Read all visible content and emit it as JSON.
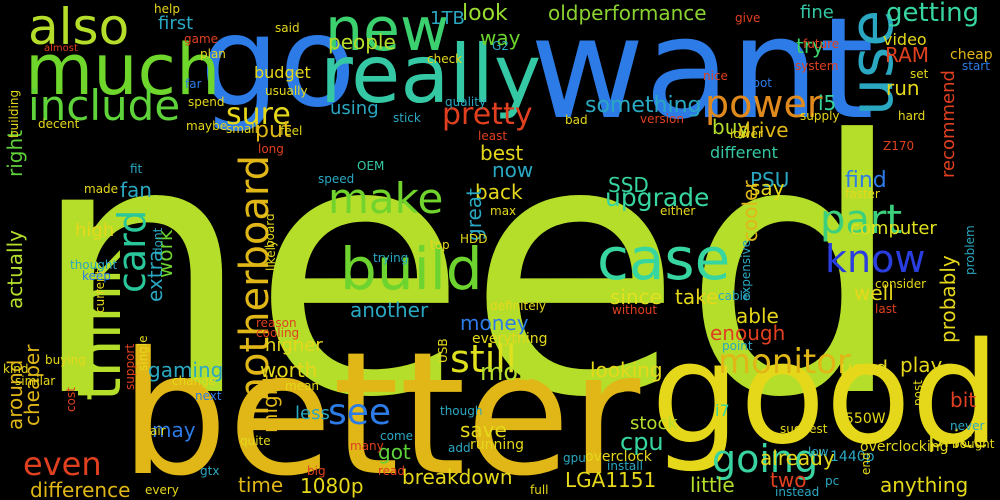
{
  "words": [
    {
      "text": "need",
      "color": "#b5de2b",
      "rot": 0
    },
    {
      "text": "better",
      "color": "#e0b716",
      "rot": 0
    },
    {
      "text": "want",
      "color": "#2d7be6",
      "rot": 0
    },
    {
      "text": "good",
      "color": "#e5d81a",
      "rot": 0
    },
    {
      "text": "go",
      "color": "#2d7be6",
      "rot": 0
    },
    {
      "text": "really",
      "color": "#35c8a4",
      "rot": 0
    },
    {
      "text": "much",
      "color": "#6fd62c",
      "rot": 0
    },
    {
      "text": "new",
      "color": "#3bd16e",
      "rot": 0
    },
    {
      "text": "use",
      "color": "#2aa8c2",
      "rot": 270
    },
    {
      "text": "case",
      "color": "#37d6a0",
      "rot": 0
    },
    {
      "text": "build",
      "color": "#6dd32e",
      "rot": 0
    },
    {
      "text": "think",
      "color": "#b5de2b",
      "rot": 270
    },
    {
      "text": "also",
      "color": "#b5de2b",
      "rot": 0
    },
    {
      "text": "include",
      "color": "#5ed33a",
      "rot": 0
    },
    {
      "text": "make",
      "color": "#70d42c",
      "rot": 0
    },
    {
      "text": "part",
      "color": "#3dd07c",
      "rot": 0
    },
    {
      "text": "know",
      "color": "#2a3ee0",
      "rot": 0
    },
    {
      "text": "power",
      "color": "#e08a1d",
      "rot": 0
    },
    {
      "text": "card",
      "color": "#2ac79b",
      "rot": 270
    },
    {
      "text": "motherboard",
      "color": "#e0b716",
      "rot": 270
    },
    {
      "text": "still",
      "color": "#dfe01e",
      "rot": 0
    },
    {
      "text": "going",
      "color": "#38d3a0",
      "rot": 0
    },
    {
      "text": "see",
      "color": "#2d7be6",
      "rot": 0
    },
    {
      "text": "monitor",
      "color": "#e0b716",
      "rot": 0
    },
    {
      "text": "even",
      "color": "#e0401f",
      "rot": 0
    },
    {
      "text": "sure",
      "color": "#e5d81a",
      "rot": 0
    },
    {
      "text": "pretty",
      "color": "#e0401f",
      "rot": 0
    },
    {
      "text": "getting",
      "color": "#37d6a0",
      "rot": 0
    },
    {
      "text": "people",
      "color": "#b5de2b",
      "rot": 0
    },
    {
      "text": "look",
      "color": "#9adb30",
      "rot": 0
    },
    {
      "text": "way",
      "color": "#6dd32e",
      "rot": 0
    },
    {
      "text": "oldperformance",
      "color": "#8bd32f",
      "rot": 0
    },
    {
      "text": "first",
      "color": "#2aa8c2",
      "rot": 0
    },
    {
      "text": "fine",
      "color": "#35c8a4",
      "rot": 0
    },
    {
      "text": "1TB",
      "color": "#2aa8c2",
      "rot": 0
    },
    {
      "text": "video",
      "color": "#e5d81a",
      "rot": 0
    },
    {
      "text": "RAM",
      "color": "#e0401f",
      "rot": 0
    },
    {
      "text": "try",
      "color": "#3bd16e",
      "rot": 0
    },
    {
      "text": "run",
      "color": "#e5d81a",
      "rot": 0
    },
    {
      "text": "i5",
      "color": "#37d6a0",
      "rot": 0
    },
    {
      "text": "budget",
      "color": "#e5d81a",
      "rot": 0
    },
    {
      "text": "using",
      "color": "#2aa8c2",
      "rot": 0
    },
    {
      "text": "something",
      "color": "#2aa8c2",
      "rot": 0
    },
    {
      "text": "put",
      "color": "#e0b716",
      "rot": 0
    },
    {
      "text": "buy",
      "color": "#b5de2b",
      "rot": 0
    },
    {
      "text": "drive",
      "color": "#e0b716",
      "rot": 0
    },
    {
      "text": "recommend",
      "color": "#e0401f",
      "rot": 270
    },
    {
      "text": "best",
      "color": "#e5d81a",
      "rot": 0
    },
    {
      "text": "now",
      "color": "#2aa8c2",
      "rot": 0
    },
    {
      "text": "different",
      "color": "#35c8a4",
      "rot": 0
    },
    {
      "text": "SSD",
      "color": "#37d6a0",
      "rot": 0
    },
    {
      "text": "PSU",
      "color": "#2aa8c2",
      "rot": 0
    },
    {
      "text": "say",
      "color": "#e5d81a",
      "rot": 0
    },
    {
      "text": "find",
      "color": "#2d7be6",
      "rot": 0
    },
    {
      "text": "upgrade",
      "color": "#37d6a0",
      "rot": 0
    },
    {
      "text": "back",
      "color": "#e5d81a",
      "rot": 0
    },
    {
      "text": "fan",
      "color": "#2aa8c2",
      "rot": 0
    },
    {
      "text": "cooler",
      "color": "#e0b716",
      "rot": 270
    },
    {
      "text": "computer",
      "color": "#dfe01e",
      "rot": 0
    },
    {
      "text": "right",
      "color": "#5ed33a",
      "rot": 270
    },
    {
      "text": "high",
      "color": "#e5d81a",
      "rot": 0
    },
    {
      "text": "lot",
      "color": "#b5de2b",
      "rot": 0
    },
    {
      "text": "work",
      "color": "#6dd32e",
      "rot": 270
    },
    {
      "text": "great",
      "color": "#2aa8c2",
      "rot": 270
    },
    {
      "text": "actually",
      "color": "#b5de2b",
      "rot": 270
    },
    {
      "text": "well",
      "color": "#e5d81a",
      "rot": 0
    },
    {
      "text": "since",
      "color": "#dfe01e",
      "rot": 0
    },
    {
      "text": "take",
      "color": "#e5d81a",
      "rot": 0
    },
    {
      "text": "able",
      "color": "#e5d81a",
      "rot": 0
    },
    {
      "text": "another",
      "color": "#2aa8c2",
      "rot": 0
    },
    {
      "text": "money",
      "color": "#2d7be6",
      "rot": 0
    },
    {
      "text": "enough",
      "color": "#e0401f",
      "rot": 0
    },
    {
      "text": "probably",
      "color": "#e5d81a",
      "rot": 270
    },
    {
      "text": "extra",
      "color": "#2aa8c2",
      "rot": 270
    },
    {
      "text": "higher",
      "color": "#e5d81a",
      "rot": 0
    },
    {
      "text": "everything",
      "color": "#e5d81a",
      "rot": 0
    },
    {
      "text": "gaming",
      "color": "#2aa8c2",
      "rot": 0
    },
    {
      "text": "worth",
      "color": "#e5d81a",
      "rot": 0
    },
    {
      "text": "mobo",
      "color": "#b5de2b",
      "rot": 0
    },
    {
      "text": "looking",
      "color": "#e5d81a",
      "rot": 0
    },
    {
      "text": "used",
      "color": "#e5d81a",
      "rot": 0
    },
    {
      "text": "play",
      "color": "#e5d81a",
      "rot": 0
    },
    {
      "text": "cheaper",
      "color": "#e0b716",
      "rot": 270
    },
    {
      "text": "around",
      "color": "#e0b716",
      "rot": 270
    },
    {
      "text": "bit",
      "color": "#e0401f",
      "rot": 0
    },
    {
      "text": "price",
      "color": "#e5d81a",
      "rot": 0
    },
    {
      "text": "might",
      "color": "#e0b716",
      "rot": 270
    },
    {
      "text": "less",
      "color": "#2aa8c2",
      "rot": 0
    },
    {
      "text": "save",
      "color": "#e5d81a",
      "rot": 0
    },
    {
      "text": "cpu",
      "color": "#37d6a0",
      "rot": 0
    },
    {
      "text": "got",
      "color": "#5ed33a",
      "rot": 0
    },
    {
      "text": "may",
      "color": "#2d7be6",
      "rot": 0
    },
    {
      "text": "stock",
      "color": "#b5de2b",
      "rot": 0
    },
    {
      "text": "two",
      "color": "#e0401f",
      "rot": 0
    },
    {
      "text": "little",
      "color": "#b5de2b",
      "rot": 0
    },
    {
      "text": "time",
      "color": "#e0b716",
      "rot": 0
    },
    {
      "text": "breakdown",
      "color": "#e5d81a",
      "rot": 0
    },
    {
      "text": "1080p",
      "color": "#e5d81a",
      "rot": 0
    },
    {
      "text": "LGA1151",
      "color": "#e5d81a",
      "rot": 0
    },
    {
      "text": "difference",
      "color": "#e0b716",
      "rot": 0
    },
    {
      "text": "already",
      "color": "#e5d81a",
      "rot": 0
    },
    {
      "text": "anything",
      "color": "#e5d81a",
      "rot": 0
    },
    {
      "text": "i7",
      "color": "#37d6a0",
      "rot": 0
    },
    {
      "text": "550W",
      "color": "#e5d81a",
      "rot": 0
    },
    {
      "text": "overclock",
      "color": "#e5d81a",
      "rot": 0
    },
    {
      "text": "running",
      "color": "#e5d81a",
      "rot": 0
    },
    {
      "text": "1440p",
      "color": "#2aa8c2",
      "rot": 0
    },
    {
      "text": "overclocking",
      "color": "#e5d81a",
      "rot": 0
    },
    {
      "text": "Z170",
      "color": "#e0401f",
      "rot": 0
    },
    {
      "text": "give",
      "color": "#e0401f",
      "rot": 0
    },
    {
      "text": "cheap",
      "color": "#e0b716",
      "rot": 0
    },
    {
      "text": "start",
      "color": "#2d7be6",
      "rot": 0
    },
    {
      "text": "said",
      "color": "#e5d81a",
      "rot": 0
    },
    {
      "text": "almost",
      "color": "#e0401f",
      "rot": 0
    },
    {
      "text": "game",
      "color": "#e0401f",
      "rot": 0
    },
    {
      "text": "check",
      "color": "#e5d81a",
      "rot": 0
    },
    {
      "text": "G2",
      "color": "#2aa8c2",
      "rot": 0
    },
    {
      "text": "future",
      "color": "#e0401f",
      "rot": 0
    },
    {
      "text": "plan",
      "color": "#e5d81a",
      "rot": 0
    },
    {
      "text": "building",
      "color": "#e5d81a",
      "rot": 270
    },
    {
      "text": "far",
      "color": "#2d7be6",
      "rot": 0
    },
    {
      "text": "usually",
      "color": "#e5d81a",
      "rot": 0
    },
    {
      "text": "system",
      "color": "#e0401f",
      "rot": 0
    },
    {
      "text": "nice",
      "color": "#e0401f",
      "rot": 0
    },
    {
      "text": "boot",
      "color": "#2d7be6",
      "rot": 0
    },
    {
      "text": "set",
      "color": "#e5d81a",
      "rot": 0
    },
    {
      "text": "spend",
      "color": "#e5d81a",
      "rot": 0
    },
    {
      "text": "quality",
      "color": "#2aa8c2",
      "rot": 0
    },
    {
      "text": "lower",
      "color": "#e5d81a",
      "rot": 0
    },
    {
      "text": "supply",
      "color": "#e5d81a",
      "rot": 0
    },
    {
      "text": "decent",
      "color": "#e5d81a",
      "rot": 0
    },
    {
      "text": "stick",
      "color": "#2aa8c2",
      "rot": 0
    },
    {
      "text": "bad",
      "color": "#e5d81a",
      "rot": 0
    },
    {
      "text": "version",
      "color": "#e0401f",
      "rot": 0
    },
    {
      "text": "maybe",
      "color": "#e5d81a",
      "rot": 0
    },
    {
      "text": "small",
      "color": "#e5d81a",
      "rot": 0
    },
    {
      "text": "feel",
      "color": "#e5d81a",
      "rot": 0
    },
    {
      "text": "least",
      "color": "#e0401f",
      "rot": 0
    },
    {
      "text": "long",
      "color": "#e0401f",
      "rot": 0
    },
    {
      "text": "help",
      "color": "#e5d81a",
      "rot": 0
    },
    {
      "text": "fit",
      "color": "#2aa8c2",
      "rot": 0
    },
    {
      "text": "made",
      "color": "#e5d81a",
      "rot": 0
    },
    {
      "text": "speed",
      "color": "#2aa8c2",
      "rot": 0
    },
    {
      "text": "OEM",
      "color": "#35c8a4",
      "rot": 0
    },
    {
      "text": "max",
      "color": "#e5d81a",
      "rot": 0
    },
    {
      "text": "faster",
      "color": "#e5d81a",
      "rot": 0
    },
    {
      "text": "either",
      "color": "#e5d81a",
      "rot": 0
    },
    {
      "text": "current",
      "color": "#e5d81a",
      "rot": 270
    },
    {
      "text": "dont",
      "color": "#2aa8c2",
      "rot": 270
    },
    {
      "text": "board",
      "color": "#e5d81a",
      "rot": 270
    },
    {
      "text": "likely",
      "color": "#e5d81a",
      "rot": 270
    },
    {
      "text": "hard",
      "color": "#e5d81a",
      "rot": 0
    },
    {
      "text": "top",
      "color": "#e5d81a",
      "rot": 0
    },
    {
      "text": "HDD",
      "color": "#e5d81a",
      "rot": 0
    },
    {
      "text": "expensive",
      "color": "#2aa8c2",
      "rot": 270
    },
    {
      "text": "thought",
      "color": "#2aa8c2",
      "rot": 0
    },
    {
      "text": "keep",
      "color": "#2d7be6",
      "rot": 0
    },
    {
      "text": "trying",
      "color": "#2aa8c2",
      "rot": 0
    },
    {
      "text": "consider",
      "color": "#e5d81a",
      "rot": 0
    },
    {
      "text": "problem",
      "color": "#2aa8c2",
      "rot": 270
    },
    {
      "text": "cable",
      "color": "#2aa8c2",
      "rot": 0
    },
    {
      "text": "definitely",
      "color": "#e5d81a",
      "rot": 0
    },
    {
      "text": "last",
      "color": "#e0401f",
      "rot": 0
    },
    {
      "text": "reason",
      "color": "#e0401f",
      "rot": 0
    },
    {
      "text": "cooling",
      "color": "#e0401f",
      "rot": 0
    },
    {
      "text": "without",
      "color": "#e0401f",
      "rot": 0
    },
    {
      "text": "point",
      "color": "#2aa8c2",
      "rot": 0
    },
    {
      "text": "support",
      "color": "#e0401f",
      "rot": 270
    },
    {
      "text": "single",
      "color": "#e5d81a",
      "rot": 270
    },
    {
      "text": "kind",
      "color": "#e5d81a",
      "rot": 0
    },
    {
      "text": "buying",
      "color": "#e5d81a",
      "rot": 0
    },
    {
      "text": "similar",
      "color": "#e5d81a",
      "rot": 0
    },
    {
      "text": "change",
      "color": "#e5d81a",
      "rot": 0
    },
    {
      "text": "mean",
      "color": "#e5d81a",
      "rot": 0
    },
    {
      "text": "USB",
      "color": "#e5d81a",
      "rot": 270
    },
    {
      "text": "next",
      "color": "#2d7be6",
      "rot": 0
    },
    {
      "text": "cost",
      "color": "#e0401f",
      "rot": 270
    },
    {
      "text": "air",
      "color": "#e5d81a",
      "rot": 0
    },
    {
      "text": "quite",
      "color": "#e5d81a",
      "rot": 0
    },
    {
      "text": "come",
      "color": "#2aa8c2",
      "rot": 0
    },
    {
      "text": "many",
      "color": "#e0401f",
      "rot": 0
    },
    {
      "text": "though",
      "color": "#2aa8c2",
      "rot": 0
    },
    {
      "text": "add",
      "color": "#2aa8c2",
      "rot": 0
    },
    {
      "text": "gpu",
      "color": "#2aa8c2",
      "rot": 0
    },
    {
      "text": "install",
      "color": "#2aa8c2",
      "rot": 0
    },
    {
      "text": "post",
      "color": "#e5d81a",
      "rot": 270
    },
    {
      "text": "suggest",
      "color": "#e5d81a",
      "rot": 0
    },
    {
      "text": "never",
      "color": "#2aa8c2",
      "rot": 0
    },
    {
      "text": "bought",
      "color": "#e5d81a",
      "rot": 0
    },
    {
      "text": "low",
      "color": "#2aa8c2",
      "rot": 0
    },
    {
      "text": "end",
      "color": "#e5d81a",
      "rot": 270
    },
    {
      "text": "gtx",
      "color": "#2aa8c2",
      "rot": 0
    },
    {
      "text": "big",
      "color": "#e0401f",
      "rot": 0
    },
    {
      "text": "read",
      "color": "#e0401f",
      "rot": 0
    },
    {
      "text": "every",
      "color": "#e5d81a",
      "rot": 0
    },
    {
      "text": "full",
      "color": "#e5d81a",
      "rot": 0
    },
    {
      "text": "pc",
      "color": "#2aa8c2",
      "rot": 0
    },
    {
      "text": "instead",
      "color": "#2aa8c2",
      "rot": 0
    }
  ]
}
